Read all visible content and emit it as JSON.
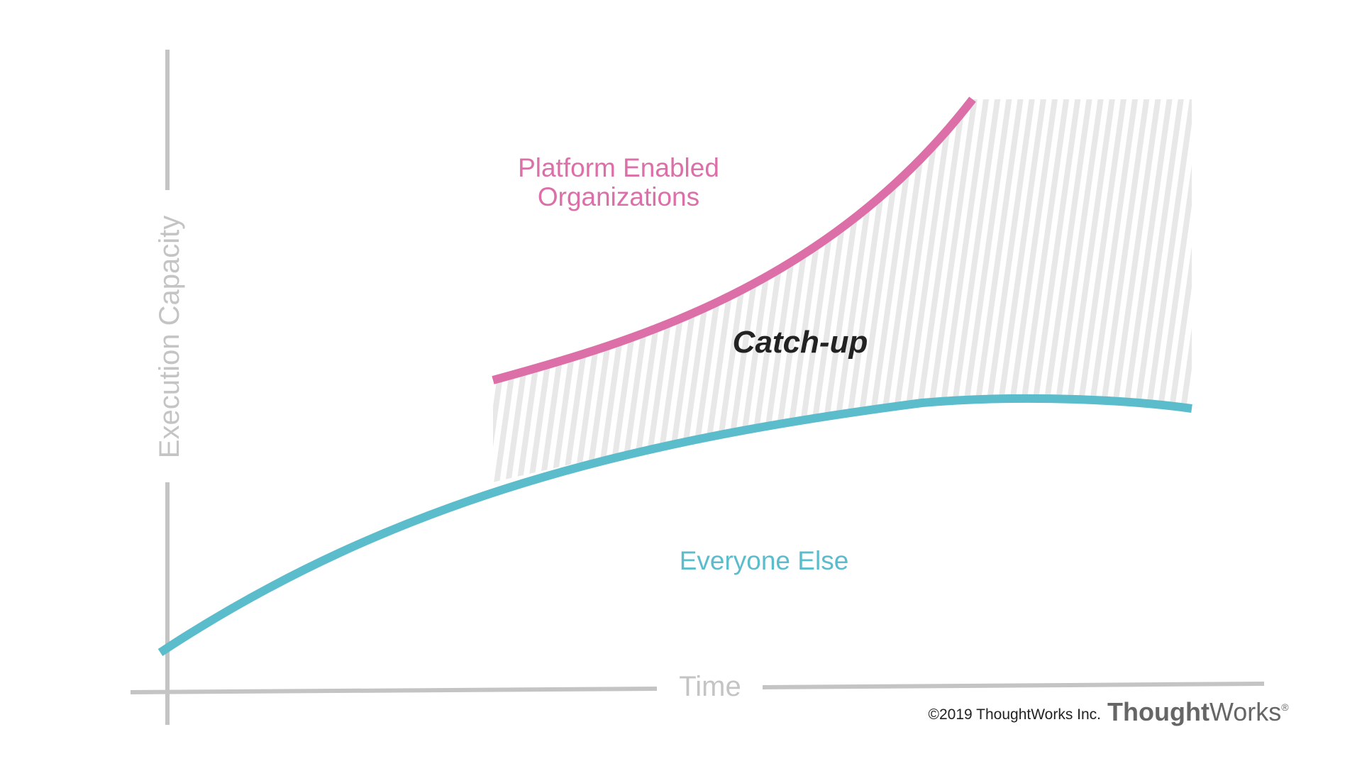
{
  "diagram": {
    "y_axis_label": "Execution Capacity",
    "x_axis_label": "Time",
    "gap_label": "Catch-up",
    "series": [
      {
        "name": "Platform Enabled Organizations",
        "lines": [
          "Platform Enabled",
          "Organizations"
        ],
        "color": "#dc6ea8"
      },
      {
        "name": "Everyone Else",
        "lines": [
          "Everyone Else"
        ],
        "color": "#5bbccc"
      }
    ],
    "axis_color": "#c4c4c4",
    "hatch_color": "#e6e6e6"
  },
  "footer": {
    "copyright": "©2019 ThoughtWorks Inc.",
    "logo_bold": "Thought",
    "logo_regular": "Works",
    "logo_mark": "®"
  }
}
